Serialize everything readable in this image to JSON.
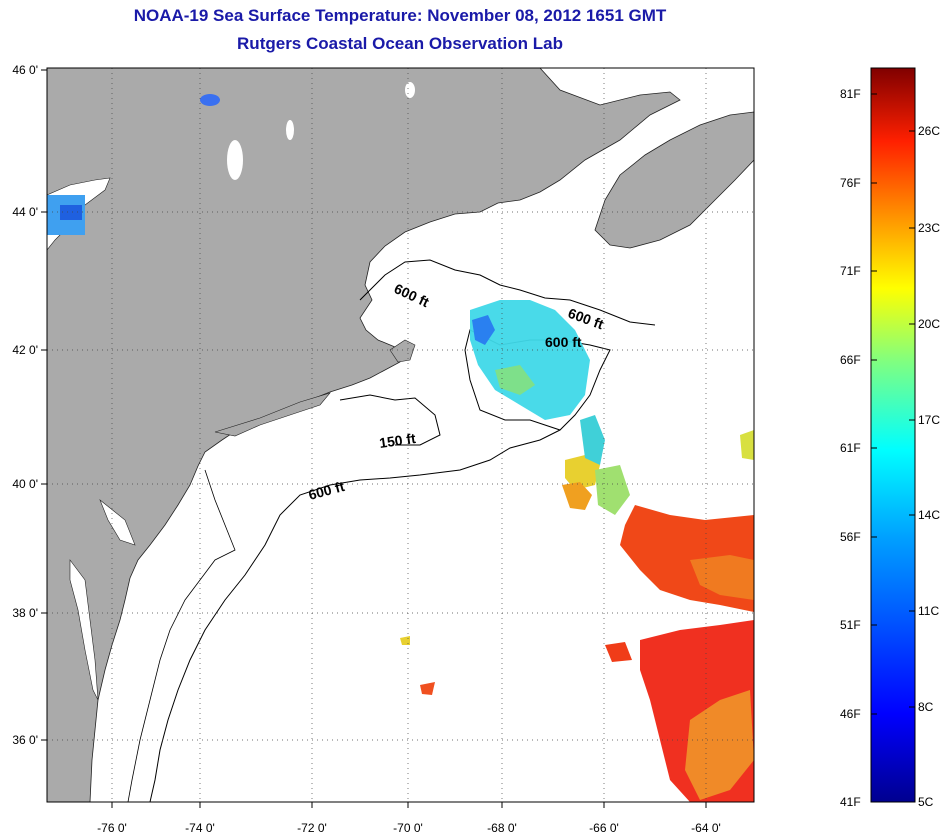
{
  "title": {
    "line1": "NOAA-19 Sea Surface Temperature:  November 08, 2012 1651 GMT",
    "line2": "Rutgers Coastal Ocean Observation Lab"
  },
  "axes": {
    "lon_ticks": [
      "-76 0'",
      "-74 0'",
      "-72 0'",
      "-70 0'",
      "-68 0'",
      "-66 0'",
      "-64 0'"
    ],
    "lat_ticks": [
      "46 0'",
      "44 0'",
      "42 0'",
      "40 0'",
      "38 0'",
      "36 0'"
    ]
  },
  "contours": [
    "600 ft",
    "600 ft",
    "600 ft",
    "150 ft",
    "600 ft"
  ],
  "colorbar": {
    "f_labels": [
      "81F",
      "76F",
      "71F",
      "66F",
      "61F",
      "56F",
      "51F",
      "46F",
      "41F"
    ],
    "c_labels": [
      "26C",
      "23C",
      "20C",
      "17C",
      "14C",
      "11C",
      "8C",
      "5C"
    ]
  },
  "colors": {
    "land": "#aaaaaa",
    "ocean": "#ffffff",
    "title": "#1a1aa8"
  }
}
